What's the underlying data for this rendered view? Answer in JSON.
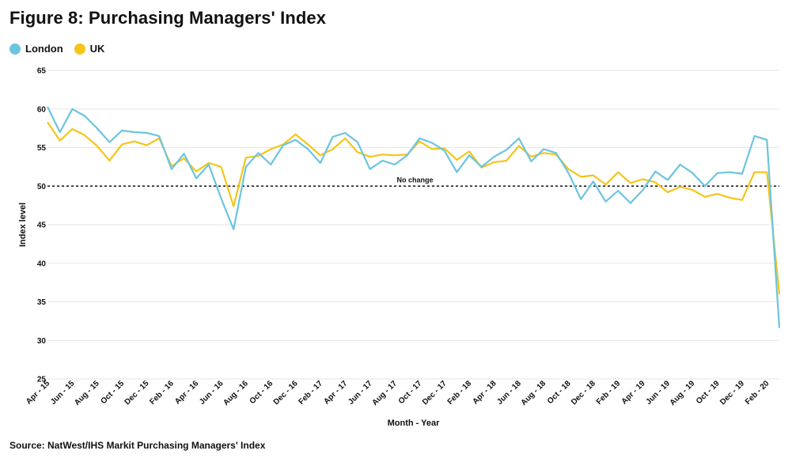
{
  "figure_title": "Figure 8: Purchasing Managers' Index",
  "source": "Source: NatWest/IHS Markit Purchasing Managers' Index",
  "colors": {
    "London": "#6bc5e0",
    "UK": "#f5c518"
  },
  "chart_data": {
    "type": "line",
    "title": "Figure 8: Purchasing Managers' Index",
    "xlabel": "Month - Year",
    "ylabel": "Index level",
    "ylim": [
      25,
      65
    ],
    "yticks": [
      25,
      30,
      35,
      40,
      45,
      50,
      55,
      60,
      65
    ],
    "grid": true,
    "legend": "top-left",
    "xtick_labels": [
      "Apr - 15",
      "Jun - 15",
      "Aug - 15",
      "Oct - 15",
      "Dec - 15",
      "Feb - 16",
      "Apr - 16",
      "Jun - 16",
      "Aug - 16",
      "Oct - 16",
      "Dec - 16",
      "Feb - 17",
      "Apr - 17",
      "Jun - 17",
      "Aug - 17",
      "Oct - 17",
      "Dec - 17",
      "Feb - 18",
      "Apr - 18",
      "Jun - 18",
      "Aug - 18",
      "Oct - 18",
      "Dec - 18",
      "Feb - 19",
      "Apr - 19",
      "Jun - 19",
      "Aug - 19",
      "Oct - 19",
      "Dec - 19",
      "Feb - 20"
    ],
    "reference_line": {
      "value": 50,
      "label": "No change"
    },
    "series": [
      {
        "name": "London",
        "values": [
          60.3,
          57.0,
          60.0,
          59.1,
          57.5,
          55.7,
          57.2,
          57.0,
          56.9,
          56.5,
          52.2,
          54.2,
          51.0,
          52.8,
          48.4,
          44.4,
          52.5,
          54.3,
          52.8,
          55.3,
          56.0,
          54.8,
          53.0,
          56.4,
          56.9,
          55.7,
          52.2,
          53.3,
          52.8,
          54.0,
          56.2,
          55.6,
          54.6,
          51.8,
          54.0,
          52.5,
          53.8,
          54.7,
          56.2,
          53.2,
          54.8,
          54.3,
          51.7,
          48.3,
          50.6,
          48.0,
          49.4,
          47.8,
          49.5,
          51.9,
          50.8,
          52.8,
          51.7,
          50.0,
          51.7,
          51.8,
          51.6,
          56.5,
          56.0,
          31.6
        ]
      },
      {
        "name": "UK",
        "values": [
          58.3,
          55.9,
          57.4,
          56.6,
          55.2,
          53.3,
          55.4,
          55.8,
          55.3,
          56.2,
          52.6,
          53.6,
          51.9,
          53.0,
          52.5,
          47.4,
          53.7,
          53.9,
          54.8,
          55.4,
          56.7,
          55.4,
          54.0,
          54.8,
          56.2,
          54.4,
          53.8,
          54.1,
          54.0,
          54.1,
          55.8,
          54.8,
          54.9,
          53.4,
          54.5,
          52.4,
          53.1,
          53.3,
          55.2,
          53.8,
          54.3,
          54.1,
          52.2,
          51.2,
          51.4,
          50.2,
          51.8,
          50.4,
          50.9,
          50.5,
          49.2,
          49.9,
          49.5,
          48.6,
          49.0,
          48.5,
          48.2,
          51.8,
          51.8,
          36.0
        ]
      }
    ]
  }
}
